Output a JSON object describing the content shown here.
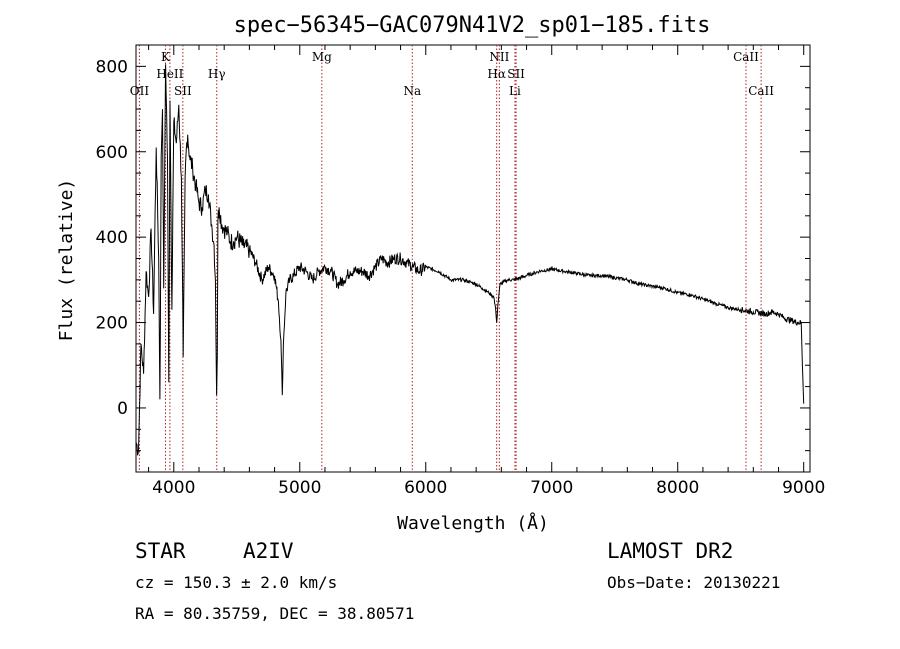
{
  "chart_data": {
    "type": "line",
    "title": "spec−56345−GAC079N41V2_sp01−185.fits",
    "xlabel": "Wavelength (Å)",
    "ylabel": "Flux (relative)",
    "xlim": [
      3700,
      9050
    ],
    "ylim": [
      -150,
      850
    ],
    "xticks": [
      4000,
      5000,
      6000,
      7000,
      8000,
      9000
    ],
    "yticks": [
      0,
      200,
      400,
      600,
      800
    ],
    "grid": false,
    "line_color": "#000000",
    "marker_color": "#b22222",
    "spectral_lines": [
      {
        "name": "OII",
        "wavelength": 3727,
        "row": 3
      },
      {
        "name": "K",
        "wavelength": 3934,
        "row": 1
      },
      {
        "name": "HeII",
        "wavelength": 3969,
        "row": 2
      },
      {
        "name": "SII",
        "wavelength": 4072,
        "row": 3
      },
      {
        "name": "Hγ",
        "wavelength": 4341,
        "row": 2
      },
      {
        "name": "Mg",
        "wavelength": 5175,
        "row": 1
      },
      {
        "name": "Na",
        "wavelength": 5893,
        "row": 3
      },
      {
        "name": "NII",
        "wavelength": 6584,
        "row": 1
      },
      {
        "name": "Hα",
        "wavelength": 6563,
        "row": 2
      },
      {
        "name": "SII",
        "wavelength": 6717,
        "row": 2
      },
      {
        "name": "Li",
        "wavelength": 6708,
        "row": 3
      },
      {
        "name": "CaII",
        "wavelength": 8542,
        "row": 1
      },
      {
        "name": "CaII",
        "wavelength": 8662,
        "row": 3
      }
    ],
    "series": [
      {
        "x": [
          3700,
          3720,
          3740,
          3760,
          3780,
          3800,
          3820,
          3840,
          3860,
          3880,
          3890,
          3900,
          3910,
          3920,
          3935,
          3950,
          3960,
          3970,
          3985,
          4000,
          4020,
          4040,
          4060,
          4075,
          4090,
          4100,
          4110,
          4125,
          4150,
          4175,
          4200,
          4225,
          4250,
          4275,
          4300,
          4320,
          4330,
          4340,
          4345,
          4350,
          4360,
          4380,
          4400,
          4425,
          4450,
          4475,
          4500,
          4550,
          4600,
          4650,
          4700,
          4750,
          4800,
          4830,
          4850,
          4861,
          4870,
          4890,
          4920,
          4950,
          5000,
          5050,
          5100,
          5150,
          5200,
          5250,
          5300,
          5350,
          5400,
          5450,
          5500,
          5550,
          5600,
          5650,
          5700,
          5750,
          5800,
          5850,
          5900,
          5950,
          6000,
          6100,
          6200,
          6300,
          6400,
          6450,
          6500,
          6540,
          6555,
          6563,
          6572,
          6590,
          6650,
          6700,
          6800,
          6900,
          7000,
          7100,
          7200,
          7300,
          7400,
          7500,
          7600,
          7700,
          7800,
          7900,
          8000,
          8100,
          8200,
          8300,
          8400,
          8500,
          8600,
          8700,
          8750,
          8800,
          8850,
          8900,
          8950,
          8980,
          8990,
          9000
        ],
        "values": [
          -80,
          -100,
          150,
          80,
          320,
          260,
          420,
          220,
          610,
          350,
          20,
          590,
          700,
          280,
          805,
          580,
          60,
          720,
          230,
          670,
          620,
          710,
          540,
          120,
          540,
          610,
          640,
          590,
          560,
          520,
          480,
          470,
          510,
          500,
          430,
          380,
          300,
          30,
          120,
          440,
          470,
          430,
          420,
          410,
          390,
          390,
          400,
          380,
          370,
          340,
          300,
          330,
          310,
          250,
          160,
          30,
          150,
          270,
          300,
          310,
          330,
          320,
          300,
          320,
          330,
          320,
          290,
          300,
          320,
          320,
          320,
          310,
          330,
          350,
          340,
          350,
          350,
          340,
          330,
          320,
          330,
          320,
          300,
          300,
          290,
          280,
          270,
          260,
          230,
          200,
          240,
          290,
          300,
          300,
          310,
          320,
          325,
          320,
          315,
          310,
          310,
          305,
          300,
          290,
          285,
          280,
          270,
          265,
          255,
          245,
          235,
          230,
          225,
          220,
          225,
          220,
          210,
          205,
          200,
          200,
          100,
          10
        ]
      }
    ]
  },
  "info": {
    "object_type": "STAR",
    "subclass": "A2IV",
    "redshift": "cz = 150.3 ± 2.0 km/s",
    "coords": "RA =  80.35759, DEC =  38.80571",
    "survey": "LAMOST DR2",
    "obs_date": "Obs−Date: 20130221"
  }
}
